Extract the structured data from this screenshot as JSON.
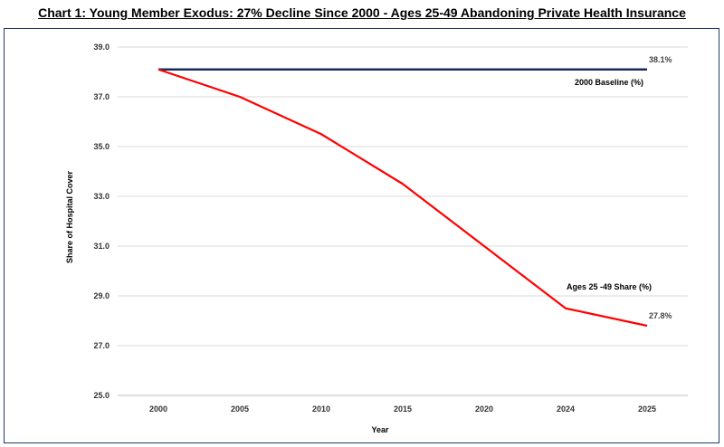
{
  "chart_data": {
    "type": "line",
    "title": "Chart 1: Young Member Exodus: 27% Decline Since 2000 - Ages 25-49 Abandoning Private Health Insurance",
    "xlabel": "Year",
    "ylabel": "Share of Hospital Cover",
    "categories": [
      "2000",
      "2005",
      "2010",
      "2015",
      "2020",
      "2024",
      "2025"
    ],
    "ylim": [
      25,
      39
    ],
    "yticks": [
      "25.0",
      "27.0",
      "29.0",
      "31.0",
      "33.0",
      "35.0",
      "37.0",
      "39.0"
    ],
    "grid": true,
    "series": [
      {
        "name": "2000 Baseline (%)",
        "color": "#1a2a5e",
        "values": [
          38.1,
          38.1,
          38.1,
          38.1,
          38.1,
          38.1,
          38.1
        ],
        "end_label": "38.1%"
      },
      {
        "name": "Ages 25 -49 Share (%)",
        "color": "#ff0000",
        "values": [
          38.1,
          37.0,
          35.5,
          33.5,
          31.0,
          28.5,
          27.8
        ],
        "end_label": "27.8%"
      }
    ]
  }
}
